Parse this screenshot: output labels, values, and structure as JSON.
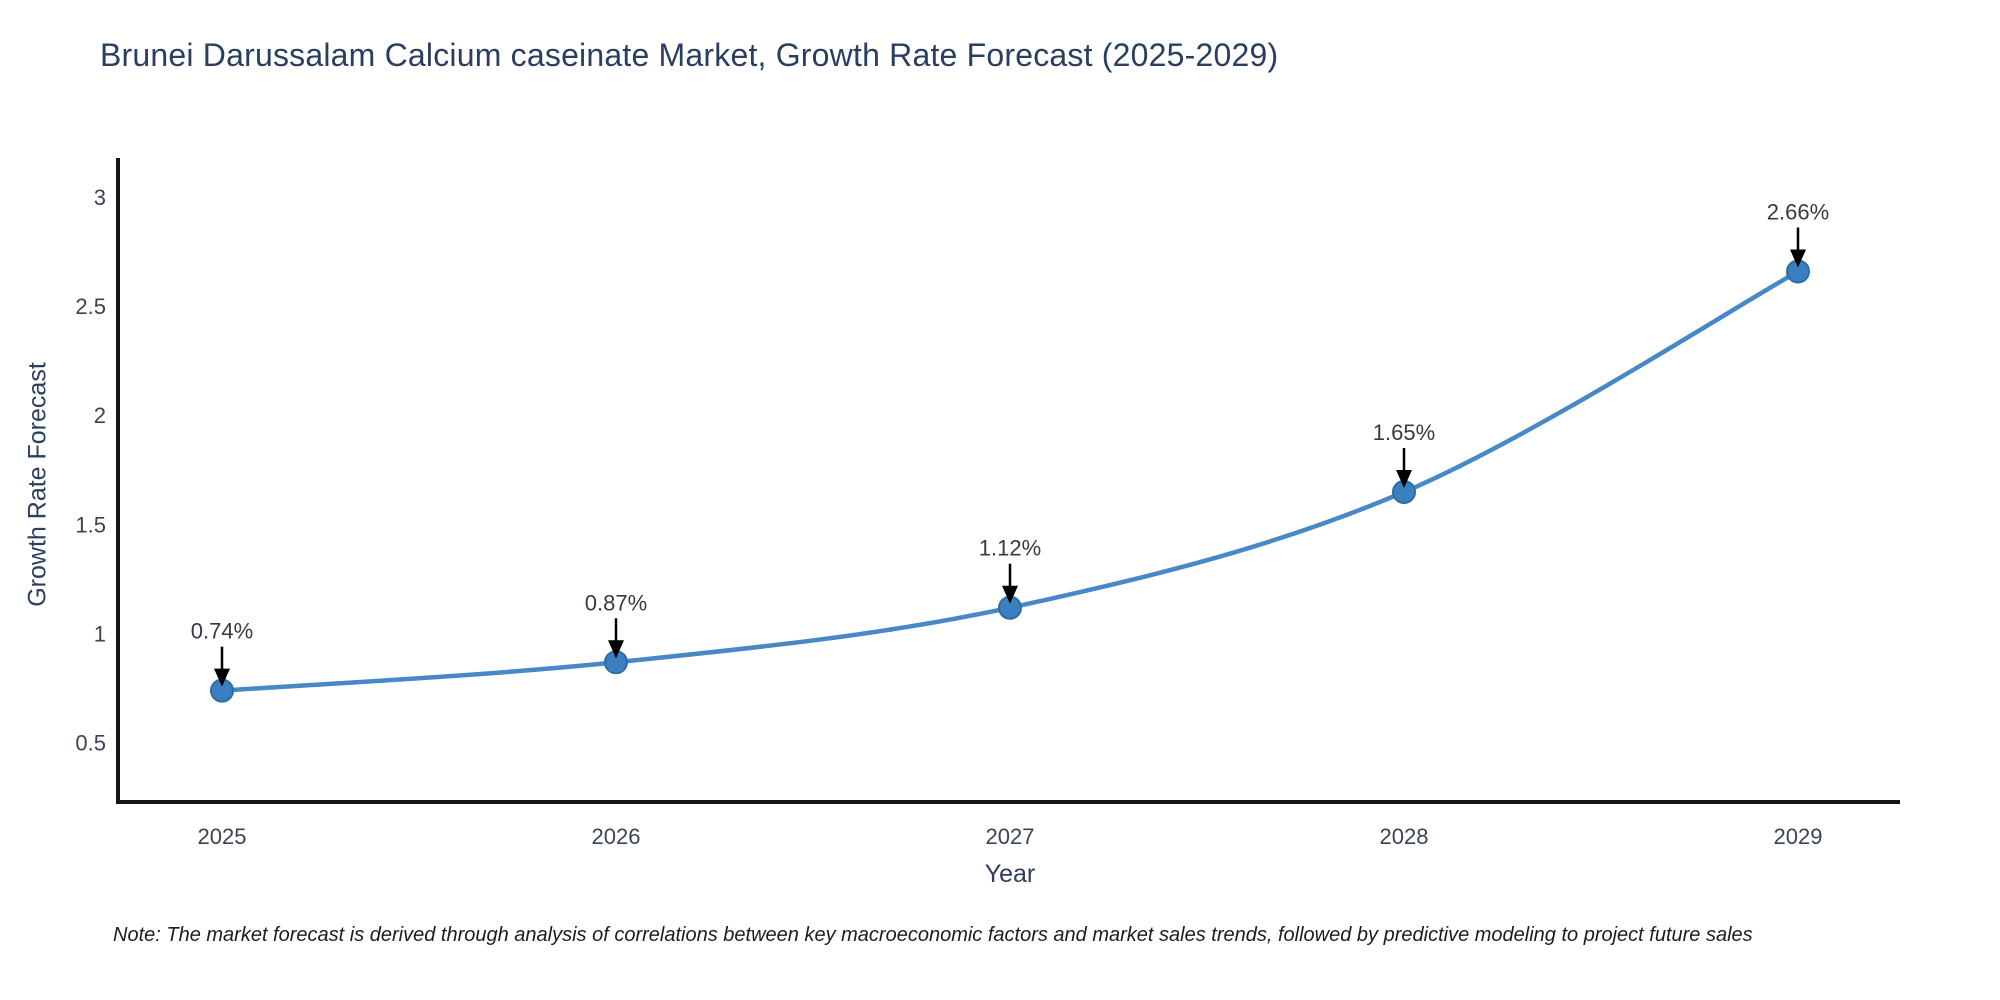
{
  "title": "Brunei Darussalam Calcium caseinate Market, Growth Rate Forecast (2025-2029)",
  "note": "Note: The market forecast is derived through analysis of correlations between key macroeconomic factors and market sales trends, followed by predictive modeling to project future sales",
  "chart_data": {
    "type": "line",
    "title": "Brunei Darussalam Calcium caseinate Market, Growth Rate Forecast (2025-2029)",
    "xlabel": "Year",
    "ylabel": "Growth Rate Forecast",
    "categories": [
      "2025",
      "2026",
      "2027",
      "2028",
      "2029"
    ],
    "series": [
      {
        "name": "Growth Rate Forecast",
        "values": [
          0.74,
          0.87,
          1.12,
          1.65,
          2.66
        ]
      }
    ],
    "point_labels": [
      "0.74%",
      "0.87%",
      "1.12%",
      "1.65%",
      "2.66%"
    ],
    "yticks": [
      0.5,
      1,
      1.5,
      2,
      2.5,
      3
    ],
    "ylim": [
      0.23,
      3.18
    ],
    "grid": false,
    "legend_position": "none",
    "line_shape": "spline",
    "annotation_arrows": true,
    "colors": {
      "line": "#4788c7",
      "marker": "#3a80c1",
      "marker_edge": "#2e6da4",
      "arrow": "#000000",
      "axis": "#161616",
      "title_text": "#2a3f5f",
      "tick_text": "#3b4452",
      "annotation_text": "#353b45"
    }
  }
}
